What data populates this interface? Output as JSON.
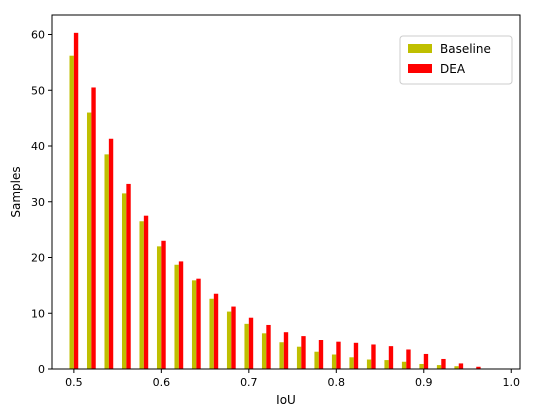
{
  "chart_data": {
    "type": "bar",
    "xlabel": "IoU",
    "ylabel": "Samples",
    "xlim": [
      0.475,
      1.01
    ],
    "ylim": [
      0,
      63.5
    ],
    "x_ticks": [
      "0.5",
      "0.6",
      "0.7",
      "0.8",
      "0.9",
      "1.0"
    ],
    "x_tick_values": [
      0.5,
      0.6,
      0.7,
      0.8,
      0.9,
      1.0
    ],
    "y_ticks": [
      "0",
      "10",
      "20",
      "30",
      "40",
      "50",
      "60"
    ],
    "y_tick_values": [
      0,
      10,
      20,
      30,
      40,
      50,
      60
    ],
    "grid": false,
    "legend_position": "top-right",
    "x": [
      0.5,
      0.52,
      0.54,
      0.56,
      0.58,
      0.6,
      0.62,
      0.64,
      0.66,
      0.68,
      0.7,
      0.72,
      0.74,
      0.76,
      0.78,
      0.8,
      0.82,
      0.84,
      0.86,
      0.88,
      0.9,
      0.92,
      0.94,
      0.96
    ],
    "series": [
      {
        "name": "Baseline",
        "color": "#bfbf00",
        "values": [
          56.2,
          46.0,
          38.5,
          31.5,
          26.5,
          22.0,
          18.7,
          15.9,
          12.6,
          10.3,
          8.1,
          6.4,
          4.8,
          4.0,
          3.1,
          2.6,
          2.1,
          1.7,
          1.6,
          1.3,
          0.9,
          0.7,
          0.5,
          0.0
        ]
      },
      {
        "name": "DEA",
        "color": "#ff0000",
        "values": [
          60.3,
          50.5,
          41.3,
          33.2,
          27.5,
          23.0,
          19.3,
          16.2,
          13.5,
          11.2,
          9.2,
          7.9,
          6.6,
          5.9,
          5.2,
          4.9,
          4.7,
          4.4,
          4.1,
          3.5,
          2.7,
          1.8,
          1.0,
          0.4
        ]
      }
    ]
  }
}
